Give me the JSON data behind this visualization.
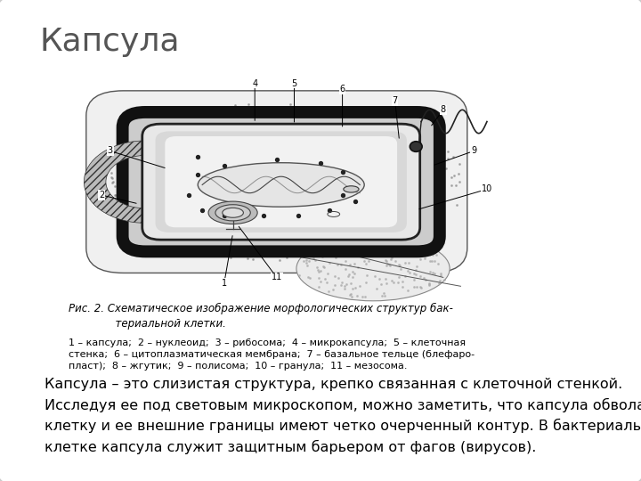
{
  "title": "Капсула",
  "title_fontsize": 26,
  "title_color": "#555555",
  "bg_color": "#ffffff",
  "border_color": "#cccccc",
  "caption_title": "Рис. 2. Схематическое изображение морфологических структур бак-\n              териальной клетки.",
  "caption_body": "1 – капсула;  2 – нуклеоид;  3 – рибосома;  4 – микрокапсула;  5 – клеточная\nстенка;  6 – цитоплазматическая мембрана;  7 – базальное тельце (блефаро-\nпласт);  8 – жгутик;  9 – полисома;  10 – гранула;  11 – мезосома.",
  "body_text": "Капсула – это слизистая структура, крепко связанная с клеточной стенкой.\nИсследуя ее под световым микроскопом, можно заметить, что капсула обволакивает\nклетку и ее внешние границы имеют четко очерченный контур. В бактериальной\nклетке капсула служит защитным барьером от фагов (вирусов).",
  "body_fontsize": 11.5,
  "caption_fontsize": 8.5
}
